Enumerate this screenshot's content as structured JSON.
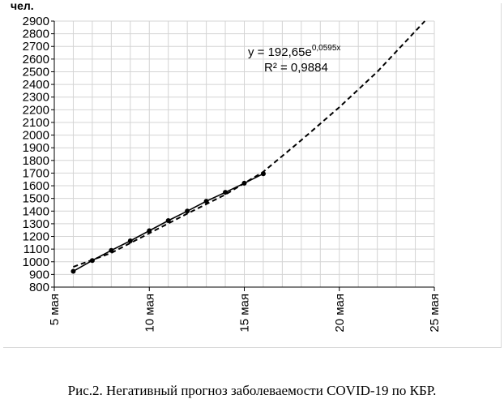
{
  "caption": "Рис.2. Негативный прогноз заболеваемости COVID-19 по КБР.",
  "chart_data": {
    "type": "line",
    "ylabel": "чел.",
    "xlabel": "",
    "xlim": [
      5,
      25
    ],
    "ylim": [
      800,
      2900
    ],
    "y_ticks": [
      800,
      900,
      1000,
      1100,
      1200,
      1300,
      1400,
      1500,
      1600,
      1700,
      1800,
      1900,
      2000,
      2100,
      2200,
      2300,
      2400,
      2500,
      2600,
      2700,
      2800,
      2900
    ],
    "x_ticks": [
      {
        "value": 5,
        "label": "5 мая"
      },
      {
        "value": 10,
        "label": "10 мая"
      },
      {
        "value": 15,
        "label": "15 мая"
      },
      {
        "value": 20,
        "label": "20 мая"
      },
      {
        "value": 25,
        "label": "25 мая"
      }
    ],
    "grid": "horizontal and vertical",
    "series": [
      {
        "style": "solid-with-markers",
        "color": "#000000",
        "x": [
          6,
          7,
          8,
          9,
          10,
          11,
          12,
          13,
          14,
          15,
          16
        ],
        "y": [
          925,
          1010,
          1090,
          1165,
          1245,
          1325,
          1400,
          1478,
          1548,
          1620,
          1695
        ]
      },
      {
        "style": "dashed-trend",
        "color": "#000000",
        "x": [
          6,
          8,
          10,
          12,
          14,
          16,
          18,
          20,
          22,
          24.5
        ],
        "y": [
          960,
          1070,
          1225,
          1380,
          1530,
          1710,
          1960,
          2220,
          2500,
          2900
        ]
      }
    ],
    "annotations": {
      "equation_prefix": "y = 192,65e",
      "equation_exponent": "0,0595x",
      "r_squared": "R² = 0,9884"
    }
  }
}
